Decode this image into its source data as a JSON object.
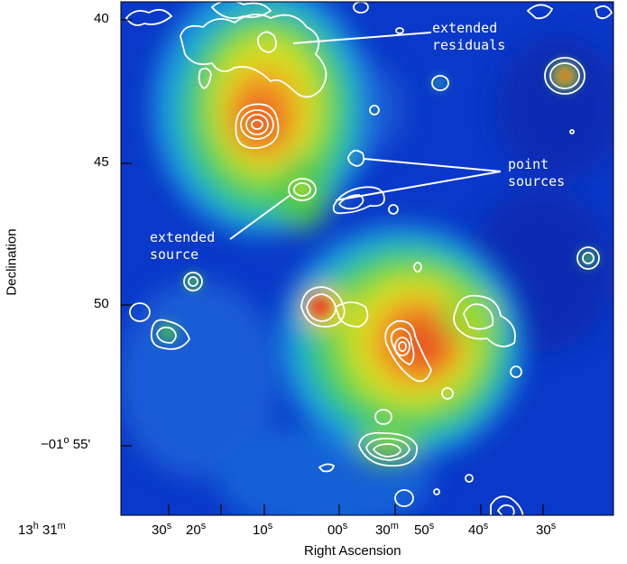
{
  "figure": {
    "colors": {
      "background": "#0a38c8",
      "green": "#3cd040",
      "yellow": "#e8e020",
      "orange": "#f08020",
      "red": "#e23020",
      "contour": "#ffffff"
    }
  },
  "axes": {
    "xlabel": "Right Ascension",
    "ylabel": "Declination",
    "x_ticks": [
      {
        "main": "13",
        "unit": "h",
        "main2": "31",
        "unit2": "m"
      },
      {
        "main": "30",
        "unit": "s"
      },
      {
        "main": "20",
        "unit": "s"
      },
      {
        "main": "10",
        "unit": "s"
      },
      {
        "main": "00",
        "unit": "s"
      },
      {
        "main": "30",
        "unit": "m"
      },
      {
        "main": "50",
        "unit": "s"
      },
      {
        "main": "40",
        "unit": "s"
      },
      {
        "main": "30",
        "unit": "s"
      }
    ],
    "y_ticks": [
      "40",
      "45",
      "50",
      "55'"
    ],
    "y_tick_prefix": "−01",
    "y_tick_prefix_unit": "o"
  },
  "annotations": {
    "extended_residuals": "extended\nresiduals",
    "point_sources": "point\nsources",
    "extended_source": "extended\nsource"
  }
}
